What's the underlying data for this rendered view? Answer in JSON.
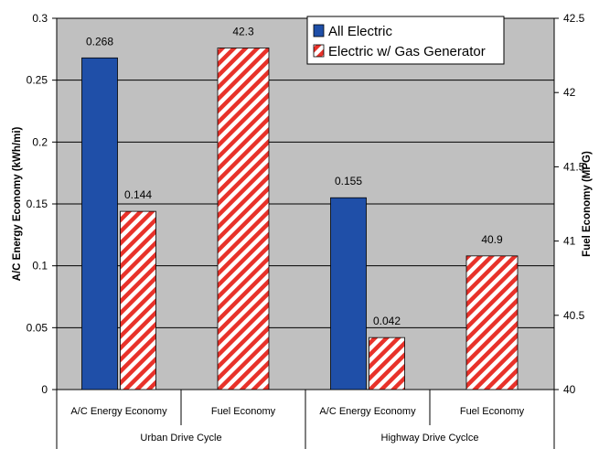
{
  "chart_data": {
    "type": "bar",
    "plot_background": "#c0c0c0",
    "categories": [
      "A/C Energy Economy",
      "Fuel Economy",
      "A/C Energy Economy",
      "Fuel Economy"
    ],
    "groups": [
      "Urban Drive Cycle",
      "Highway Drive Cyclce"
    ],
    "series": [
      {
        "name": "All Electric",
        "color": "#1f4fa8",
        "pattern": "solid",
        "axis": "left",
        "values": [
          0.268,
          null,
          0.155,
          null
        ],
        "labels": [
          "0.268",
          "",
          "0.155",
          ""
        ]
      },
      {
        "name": "Electric w/ Gas Generator",
        "color": "#e8322a",
        "pattern": "diagonal-hatch",
        "axis": "mixed",
        "values": [
          0.144,
          42.3,
          0.042,
          40.9
        ],
        "labels": [
          "0.144",
          "42.3",
          "0.042",
          "40.9"
        ]
      }
    ],
    "y_left": {
      "label": "A/C Energy Economy (kWh/mi)",
      "ylim": [
        0,
        0.3
      ],
      "ticks": [
        "0",
        "0.05",
        "0.1",
        "0.15",
        "0.2",
        "0.25",
        "0.3"
      ]
    },
    "y_right": {
      "label": "Fuel Economy (MPG)",
      "ylim": [
        40,
        42.5
      ],
      "ticks": [
        "40",
        "40.5",
        "41",
        "41.5",
        "42",
        "42.5"
      ]
    },
    "grid": true,
    "legend_position": "top-right"
  }
}
